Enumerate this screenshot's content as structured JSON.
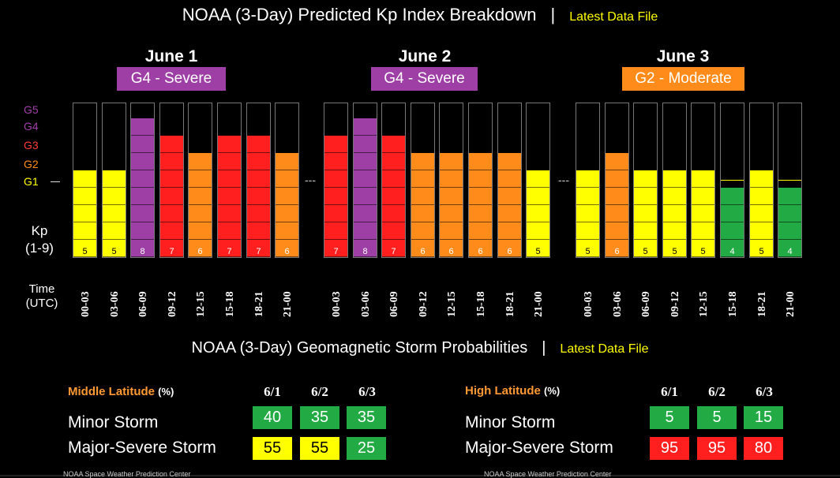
{
  "colors": {
    "background": "#000000",
    "link": "#ffff00",
    "g1": "#ffff00",
    "g2": "#ff8c1a",
    "g3": "#ff1f1f",
    "g4": "#9e3fa6",
    "quiet": "#22aa44",
    "latitude": "#ff9933"
  },
  "kp_header": {
    "title": "NOAA (3-Day) Predicted Kp Index Breakdown",
    "separator": "|",
    "link": "Latest Data File"
  },
  "g_scale_labels": [
    "G5",
    "G4",
    "G3",
    "G2",
    "G1"
  ],
  "kp_label": [
    "Kp",
    "(1-9)"
  ],
  "time_label": [
    "Time",
    "(UTC)"
  ],
  "kp_separator": "---",
  "days": [
    {
      "title": "June 1",
      "storm_level": "G4 - Severe",
      "storm_color": "#9e3fa6",
      "periods": [
        {
          "time": "00-03",
          "kp": 5,
          "color": "#ffff00"
        },
        {
          "time": "03-06",
          "kp": 5,
          "color": "#ffff00"
        },
        {
          "time": "06-09",
          "kp": 8,
          "color": "#9e3fa6"
        },
        {
          "time": "09-12",
          "kp": 7,
          "color": "#ff1f1f"
        },
        {
          "time": "12-15",
          "kp": 6,
          "color": "#ff8c1a"
        },
        {
          "time": "15-18",
          "kp": 7,
          "color": "#ff1f1f"
        },
        {
          "time": "18-21",
          "kp": 7,
          "color": "#ff1f1f"
        },
        {
          "time": "21-00",
          "kp": 6,
          "color": "#ff8c1a"
        }
      ]
    },
    {
      "title": "June 2",
      "storm_level": "G4 - Severe",
      "storm_color": "#9e3fa6",
      "periods": [
        {
          "time": "00-03",
          "kp": 7,
          "color": "#ff1f1f"
        },
        {
          "time": "03-06",
          "kp": 8,
          "color": "#9e3fa6"
        },
        {
          "time": "06-09",
          "kp": 7,
          "color": "#ff1f1f"
        },
        {
          "time": "09-12",
          "kp": 6,
          "color": "#ff8c1a"
        },
        {
          "time": "12-15",
          "kp": 6,
          "color": "#ff8c1a"
        },
        {
          "time": "15-18",
          "kp": 6,
          "color": "#ff8c1a"
        },
        {
          "time": "18-21",
          "kp": 6,
          "color": "#ff8c1a"
        },
        {
          "time": "21-00",
          "kp": 5,
          "color": "#ffff00"
        }
      ]
    },
    {
      "title": "June 3",
      "storm_level": "G2 - Moderate",
      "storm_color": "#ff8c1a",
      "periods": [
        {
          "time": "00-03",
          "kp": 5,
          "color": "#ffff00"
        },
        {
          "time": "03-06",
          "kp": 6,
          "color": "#ff8c1a"
        },
        {
          "time": "06-09",
          "kp": 5,
          "color": "#ffff00"
        },
        {
          "time": "09-12",
          "kp": 5,
          "color": "#ffff00"
        },
        {
          "time": "12-15",
          "kp": 5,
          "color": "#ffff00"
        },
        {
          "time": "15-18",
          "kp": 4,
          "color": "#22aa44"
        },
        {
          "time": "18-21",
          "kp": 5,
          "color": "#ffff00"
        },
        {
          "time": "21-00",
          "kp": 4,
          "color": "#22aa44"
        }
      ]
    }
  ],
  "prob_header": {
    "title": "NOAA (3-Day) Geomagnetic Storm Probabilities",
    "separator": "|",
    "link": "Latest Data File"
  },
  "probabilities": [
    {
      "latitude": "Middle Latitude",
      "pct": "(%)",
      "dates": [
        "6/1",
        "6/2",
        "6/3"
      ],
      "rows": [
        {
          "label": "Minor Storm",
          "values": [
            {
              "v": "40",
              "color": "#22aa44",
              "text": "#ffffff"
            },
            {
              "v": "35",
              "color": "#22aa44",
              "text": "#ffffff"
            },
            {
              "v": "35",
              "color": "#22aa44",
              "text": "#ffffff"
            }
          ]
        },
        {
          "label": "Major-Severe Storm",
          "values": [
            {
              "v": "55",
              "color": "#ffff00",
              "text": "#000000"
            },
            {
              "v": "55",
              "color": "#ffff00",
              "text": "#000000"
            },
            {
              "v": "25",
              "color": "#22aa44",
              "text": "#ffffff"
            }
          ]
        }
      ]
    },
    {
      "latitude": "High Latitude",
      "pct": "(%)",
      "dates": [
        "6/1",
        "6/2",
        "6/3"
      ],
      "rows": [
        {
          "label": "Minor Storm",
          "values": [
            {
              "v": "5",
              "color": "#22aa44",
              "text": "#ffffff"
            },
            {
              "v": "5",
              "color": "#22aa44",
              "text": "#ffffff"
            },
            {
              "v": "15",
              "color": "#22aa44",
              "text": "#ffffff"
            }
          ]
        },
        {
          "label": "Major-Severe Storm",
          "values": [
            {
              "v": "95",
              "color": "#ff1f1f",
              "text": "#ffffff"
            },
            {
              "v": "95",
              "color": "#ff1f1f",
              "text": "#ffffff"
            },
            {
              "v": "80",
              "color": "#ff1f1f",
              "text": "#ffffff"
            }
          ]
        }
      ]
    }
  ],
  "footer": [
    "NOAA Space Weather Prediction Center",
    "NOAA Space Weather Prediction Center"
  ]
}
